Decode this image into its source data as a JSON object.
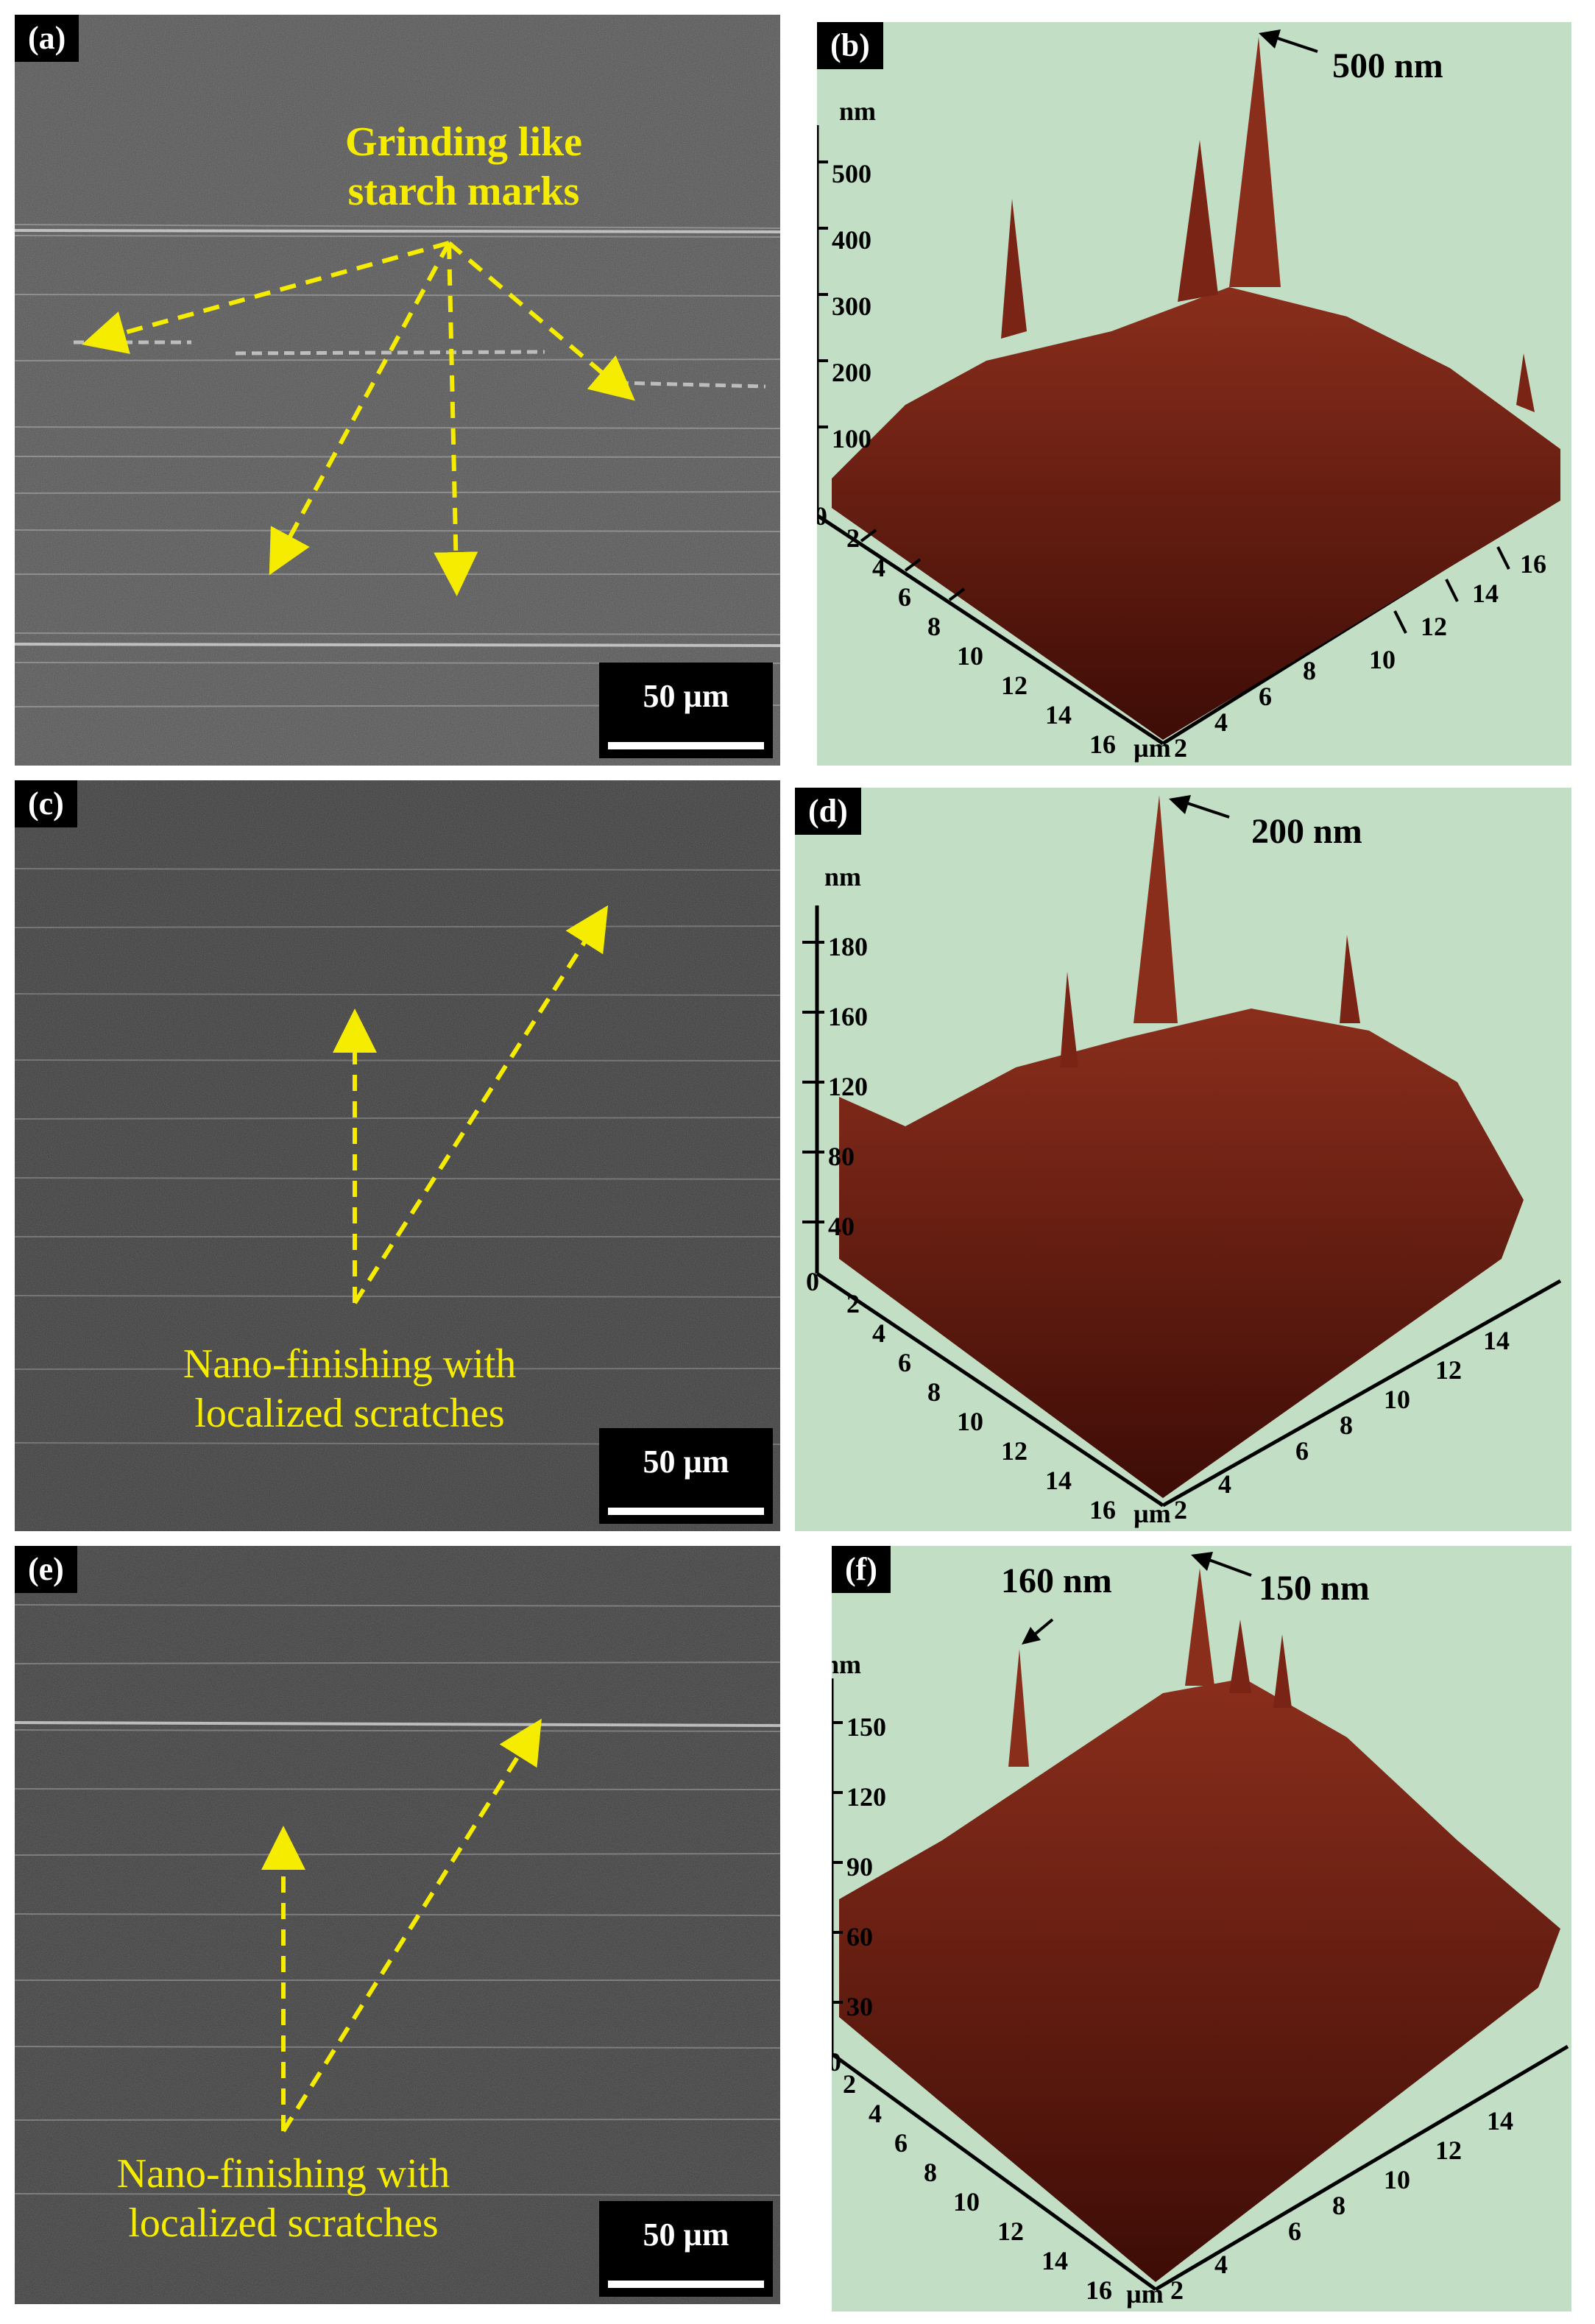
{
  "figure": {
    "panels": [
      {
        "id": "a",
        "label": "(a)",
        "scale_bar": "50 µm",
        "annotation": "Grinding like starch marks"
      },
      {
        "id": "b",
        "label": "(b)",
        "z_unit": "nm",
        "z_ticks": [
          "0",
          "100",
          "200",
          "300",
          "400",
          "500"
        ],
        "peak_label": "500 nm",
        "x_unit": "µm",
        "x_ticks": [
          "2",
          "4",
          "6",
          "8",
          "10",
          "12",
          "14",
          "16"
        ],
        "y_ticks": [
          "2",
          "4",
          "6",
          "8",
          "10",
          "12",
          "14",
          "16"
        ]
      },
      {
        "id": "c",
        "label": "(c)",
        "scale_bar": "50 µm",
        "annotation_line1": "Nano-finishing with",
        "annotation_line2": "localized scratches"
      },
      {
        "id": "d",
        "label": "(d)",
        "z_unit": "nm",
        "z_ticks": [
          "0",
          "40",
          "80",
          "120",
          "160",
          "180"
        ],
        "peak_label": "200 nm",
        "x_unit": "µm",
        "x_ticks": [
          "2",
          "4",
          "6",
          "8",
          "10",
          "12",
          "14",
          "16"
        ],
        "y_ticks": [
          "2",
          "4",
          "6",
          "8",
          "10",
          "12",
          "14"
        ]
      },
      {
        "id": "e",
        "label": "(e)",
        "scale_bar": "50 µm",
        "annotation_line1": "Nano-finishing with",
        "annotation_line2": "localized scratches"
      },
      {
        "id": "f",
        "label": "(f)",
        "z_unit": "nm",
        "z_ticks": [
          "0",
          "30",
          "60",
          "90",
          "120",
          "150"
        ],
        "peak_label": "150 nm",
        "secondary_peak_label": "160 nm",
        "x_unit": "µm",
        "x_ticks": [
          "2",
          "4",
          "6",
          "8",
          "10",
          "12",
          "14",
          "16"
        ],
        "y_ticks": [
          "2",
          "4",
          "6",
          "8",
          "10",
          "12",
          "14"
        ]
      }
    ],
    "colors": {
      "sem_background": "#4a4a4a",
      "afm_background": "#c2dfc6",
      "afm_surface": "#6b1e12",
      "annotation": "#f5ec00"
    }
  }
}
